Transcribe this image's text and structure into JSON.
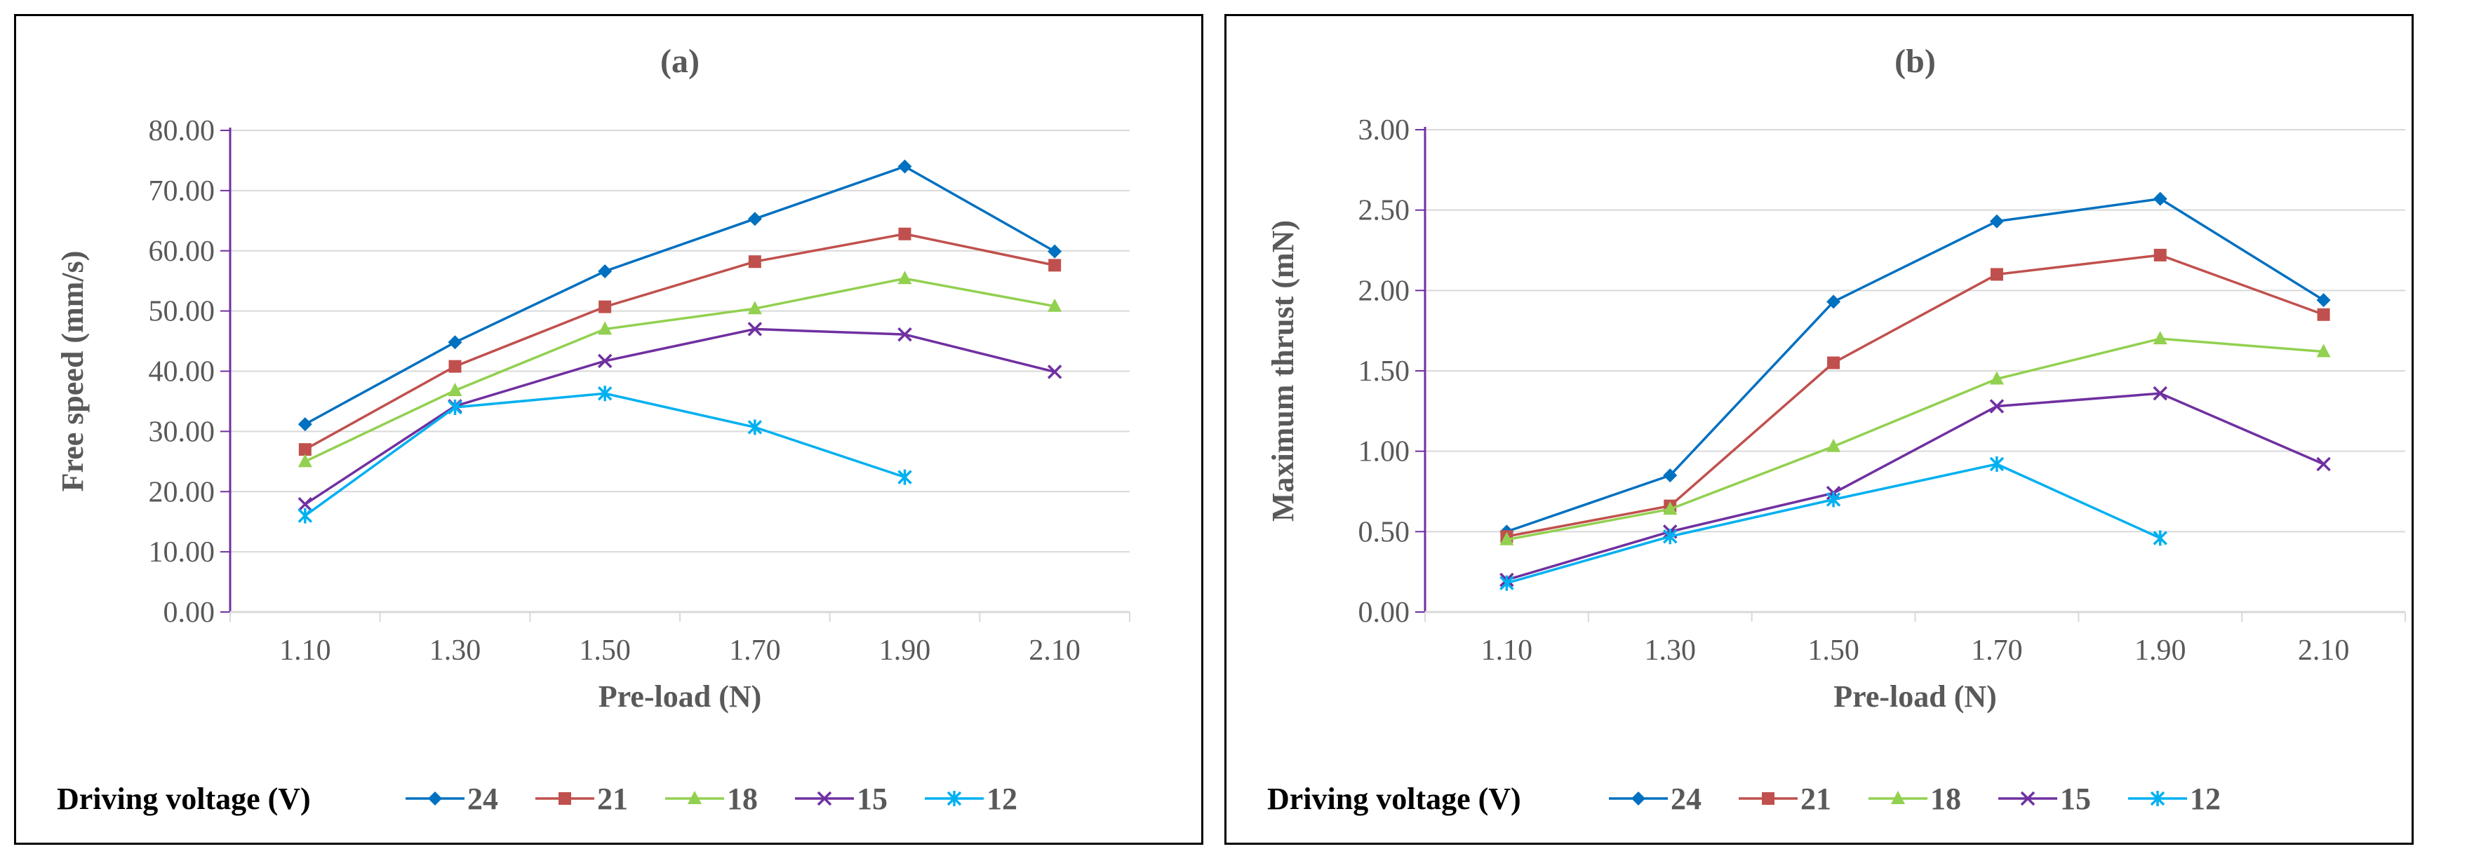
{
  "legend_title": "Driving voltage (V)",
  "colors": {
    "axis": "#7030A0",
    "grid": "#D9D9D9",
    "text": "#595959"
  },
  "chart_data": [
    {
      "type": "line",
      "title": "(a)",
      "xlabel": "Pre-load (N)",
      "ylabel": "Free speed (mm/s)",
      "categories": [
        "1.10",
        "1.30",
        "1.50",
        "1.70",
        "1.90",
        "2.10"
      ],
      "ylim": [
        0,
        80
      ],
      "yticks": [
        0,
        10,
        20,
        30,
        40,
        50,
        60,
        70,
        80
      ],
      "ytick_labels": [
        "0.00",
        "10.00",
        "20.00",
        "30.00",
        "40.00",
        "50.00",
        "60.00",
        "70.00",
        "80.00"
      ],
      "grid": true,
      "legend": "bottom",
      "series": [
        {
          "name": "24",
          "color": "#0070C0",
          "marker": "diamond",
          "values": [
            31.2,
            44.8,
            56.6,
            65.3,
            74.0,
            59.9
          ]
        },
        {
          "name": "21",
          "color": "#C0504D",
          "marker": "square",
          "values": [
            27.0,
            40.8,
            50.7,
            58.2,
            62.8,
            57.6
          ]
        },
        {
          "name": "18",
          "color": "#92D050",
          "marker": "triangle",
          "values": [
            25.0,
            36.8,
            47.0,
            50.4,
            55.4,
            50.8
          ]
        },
        {
          "name": "15",
          "color": "#7030A0",
          "marker": "x",
          "values": [
            17.9,
            34.2,
            41.7,
            47.0,
            46.1,
            39.9
          ]
        },
        {
          "name": "12",
          "color": "#00B0F0",
          "marker": "star",
          "values": [
            16.0,
            34.0,
            36.3,
            30.7,
            22.4,
            null
          ]
        }
      ]
    },
    {
      "type": "line",
      "title": "(b)",
      "xlabel": "Pre-load (N)",
      "ylabel": "Maximum thrust (mN)",
      "categories": [
        "1.10",
        "1.30",
        "1.50",
        "1.70",
        "1.90",
        "2.10"
      ],
      "ylim": [
        0,
        3
      ],
      "yticks": [
        0,
        0.5,
        1,
        1.5,
        2,
        2.5,
        3
      ],
      "ytick_labels": [
        "0.00",
        "0.50",
        "1.00",
        "1.50",
        "2.00",
        "2.50",
        "3.00"
      ],
      "grid": true,
      "legend": "bottom",
      "series": [
        {
          "name": "24",
          "color": "#0070C0",
          "marker": "diamond",
          "values": [
            0.5,
            0.85,
            1.93,
            2.43,
            2.57,
            1.94
          ]
        },
        {
          "name": "21",
          "color": "#C0504D",
          "marker": "square",
          "values": [
            0.47,
            0.66,
            1.55,
            2.1,
            2.22,
            1.85
          ]
        },
        {
          "name": "18",
          "color": "#92D050",
          "marker": "triangle",
          "values": [
            0.45,
            0.64,
            1.03,
            1.45,
            1.7,
            1.62
          ]
        },
        {
          "name": "15",
          "color": "#7030A0",
          "marker": "x",
          "values": [
            0.2,
            0.5,
            0.74,
            1.28,
            1.36,
            0.92
          ]
        },
        {
          "name": "12",
          "color": "#00B0F0",
          "marker": "star",
          "values": [
            0.18,
            0.47,
            0.7,
            0.92,
            0.46,
            null
          ]
        }
      ]
    }
  ]
}
